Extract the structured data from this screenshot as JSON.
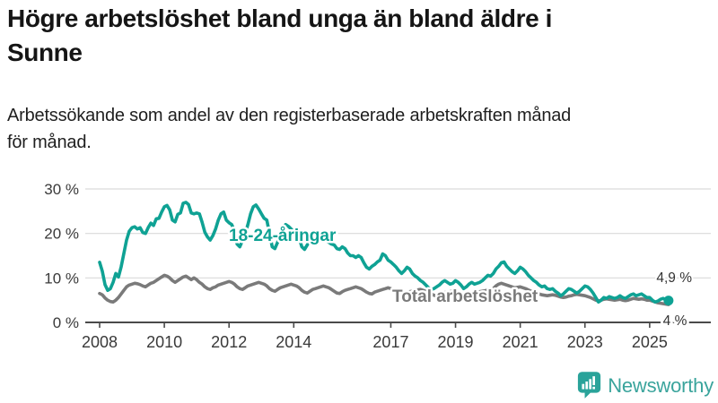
{
  "header": {
    "title_line1": "Högre arbetslöshet bland unga än bland äldre i",
    "title_line2": "Sunne",
    "subtitle_line1": "Arbetssökande som andel av den registerbaserade arbetskraften månad",
    "subtitle_line2": "för månad."
  },
  "footer": {
    "brand": "Newsworthy"
  },
  "colors": {
    "accent_teal": "#0fa294",
    "series_gray": "#7a7a7a",
    "axis_text": "#3a3a3a",
    "grid": "#d9d9d9",
    "axis_line": "#4a4a4a",
    "end_label_text": "#333333",
    "logo_teal": "#2aa39a",
    "logo_text": "#3aa49c"
  },
  "chart_data": {
    "type": "line",
    "title": "Högre arbetslöshet bland unga än bland äldre i Sunne",
    "subtitle": "Arbetssökande som andel av den registerbaserade arbetskraften månad för månad.",
    "grid": true,
    "legend_position": "inline-labels",
    "x_axis": {
      "start_year": 2008,
      "end_point": "2025-08",
      "frequency": "monthly",
      "ticks": [
        {
          "year": 2008,
          "label": "2008"
        },
        {
          "year": 2010,
          "label": "2010"
        },
        {
          "year": 2012,
          "label": "2012"
        },
        {
          "year": 2014,
          "label": "2014"
        },
        {
          "year": 2017,
          "label": "2017"
        },
        {
          "year": 2019,
          "label": "2019"
        },
        {
          "year": 2021,
          "label": "2021"
        },
        {
          "year": 2023,
          "label": "2023"
        },
        {
          "year": 2025,
          "label": "2025"
        }
      ]
    },
    "y_axis": {
      "unit": "%",
      "range": [
        0,
        30
      ],
      "ticks": [
        {
          "value": 30,
          "label": "30 %"
        },
        {
          "value": 20,
          "label": "20 %"
        },
        {
          "value": 10,
          "label": "10 %"
        },
        {
          "value": 0,
          "label": "0 %"
        }
      ]
    },
    "series": [
      {
        "id": "youth",
        "name": "18-24-åringar",
        "color": "#0fa294",
        "end_label": "4,9 %",
        "last_value": 4.9,
        "values": [
          13.5,
          11.5,
          8.5,
          7.2,
          7.6,
          9.0,
          11.0,
          10.2,
          12.5,
          15.5,
          18.5,
          20.5,
          21.3,
          21.5,
          21.0,
          21.3,
          20.2,
          20.0,
          21.3,
          22.3,
          21.8,
          23.3,
          23.4,
          24.8,
          26.0,
          26.3,
          25.3,
          23.0,
          22.6,
          24.3,
          24.6,
          26.8,
          27.0,
          26.5,
          24.6,
          24.4,
          24.6,
          24.4,
          22.5,
          20.3,
          19.2,
          18.5,
          19.5,
          21.0,
          23.0,
          24.4,
          24.8,
          23.0,
          22.4,
          22.0,
          20.5,
          17.6,
          17.0,
          18.4,
          20.0,
          22.0,
          24.4,
          26.0,
          26.4,
          25.5,
          24.4,
          23.4,
          23.0,
          20.0,
          17.0,
          16.6,
          18.0,
          20.0,
          21.4,
          22.0,
          21.6,
          21.0,
          20.4,
          20.0,
          19.0,
          17.0,
          16.4,
          17.4,
          18.4,
          19.4,
          20.0,
          20.0,
          19.4,
          19.0,
          18.4,
          18.0,
          17.6,
          17.4,
          16.6,
          16.4,
          17.0,
          16.6,
          15.6,
          15.0,
          15.0,
          14.6,
          15.0,
          14.6,
          13.4,
          12.4,
          12.0,
          12.6,
          13.0,
          13.6,
          14.0,
          15.4,
          15.0,
          14.0,
          13.6,
          13.0,
          12.4,
          11.6,
          11.0,
          11.6,
          12.4,
          12.0,
          11.0,
          10.4,
          10.0,
          9.4,
          9.0,
          8.4,
          7.8,
          7.4,
          7.6,
          8.0,
          8.4,
          9.0,
          9.4,
          9.0,
          8.6,
          8.8,
          9.4,
          9.0,
          8.4,
          7.6,
          8.0,
          8.6,
          9.0,
          8.6,
          8.8,
          9.0,
          9.4,
          10.0,
          10.6,
          10.4,
          11.0,
          12.0,
          12.6,
          13.4,
          13.6,
          12.6,
          12.0,
          11.4,
          11.0,
          11.6,
          12.4,
          12.0,
          11.4,
          10.6,
          10.0,
          9.4,
          9.0,
          8.4,
          8.0,
          8.2,
          7.6,
          7.4,
          7.6,
          7.0,
          6.6,
          6.0,
          6.4,
          7.0,
          7.6,
          7.4,
          7.0,
          6.6,
          7.0,
          7.6,
          8.2,
          8.0,
          7.4,
          6.6,
          5.6,
          4.6,
          5.0,
          5.6,
          5.4,
          5.8,
          5.6,
          5.4,
          5.6,
          6.0,
          5.6,
          5.4,
          5.8,
          6.2,
          6.4,
          6.0,
          6.2,
          6.4,
          6.0,
          5.6,
          5.6,
          5.0,
          4.6,
          4.8,
          5.2,
          5.4,
          5.1,
          4.9
        ]
      },
      {
        "id": "total",
        "name": "Total arbetslöshet",
        "color": "#7a7a7a",
        "end_label": "4 %",
        "last_value": 4.0,
        "values": [
          6.5,
          6.2,
          5.5,
          5.0,
          4.7,
          4.6,
          5.0,
          5.6,
          6.4,
          7.2,
          8.0,
          8.4,
          8.6,
          8.8,
          8.7,
          8.5,
          8.2,
          8.0,
          8.4,
          8.8,
          9.0,
          9.4,
          9.8,
          10.2,
          10.6,
          10.4,
          10.0,
          9.4,
          9.0,
          9.4,
          9.8,
          10.2,
          10.4,
          10.0,
          9.6,
          10.0,
          9.6,
          9.0,
          8.6,
          8.0,
          7.6,
          7.4,
          7.8,
          8.0,
          8.4,
          8.6,
          8.8,
          9.0,
          9.2,
          9.0,
          8.6,
          8.0,
          7.6,
          7.4,
          7.8,
          8.2,
          8.4,
          8.6,
          8.8,
          9.0,
          8.8,
          8.6,
          8.2,
          7.6,
          7.2,
          7.0,
          7.4,
          7.8,
          8.0,
          8.2,
          8.4,
          8.6,
          8.4,
          8.2,
          7.8,
          7.2,
          6.8,
          6.6,
          7.0,
          7.4,
          7.6,
          7.8,
          8.0,
          8.2,
          8.0,
          7.8,
          7.4,
          7.0,
          6.6,
          6.5,
          6.9,
          7.2,
          7.4,
          7.6,
          7.8,
          8.0,
          7.8,
          7.6,
          7.2,
          6.8,
          6.5,
          6.4,
          6.8,
          7.0,
          7.2,
          7.4,
          7.6,
          7.8,
          7.6,
          7.4,
          7.0,
          6.6,
          6.4,
          6.3,
          6.6,
          6.9,
          7.0,
          7.2,
          7.3,
          7.4,
          7.2,
          7.0,
          6.7,
          6.4,
          6.1,
          6.0,
          6.3,
          6.6,
          6.7,
          6.8,
          6.9,
          7.0,
          7.0,
          6.8,
          6.5,
          6.2,
          6.0,
          6.2,
          6.5,
          6.7,
          6.8,
          6.9,
          7.0,
          7.1,
          7.3,
          7.2,
          7.6,
          8.2,
          8.6,
          8.8,
          8.6,
          8.4,
          8.2,
          8.0,
          7.8,
          7.9,
          8.0,
          7.8,
          7.6,
          7.3,
          7.0,
          6.8,
          6.6,
          6.4,
          6.2,
          6.1,
          6.0,
          6.1,
          6.2,
          6.1,
          5.9,
          5.7,
          5.6,
          5.7,
          5.9,
          6.0,
          6.2,
          6.3,
          6.2,
          6.1,
          6.0,
          5.8,
          5.6,
          5.3,
          5.0,
          4.8,
          5.0,
          5.2,
          5.3,
          5.2,
          5.1,
          5.0,
          5.1,
          5.2,
          5.0,
          4.9,
          5.0,
          5.2,
          5.4,
          5.3,
          5.2,
          5.3,
          5.2,
          5.0,
          5.0,
          4.8,
          4.6,
          4.4,
          4.3,
          4.2,
          4.1,
          4.0
        ]
      }
    ]
  }
}
